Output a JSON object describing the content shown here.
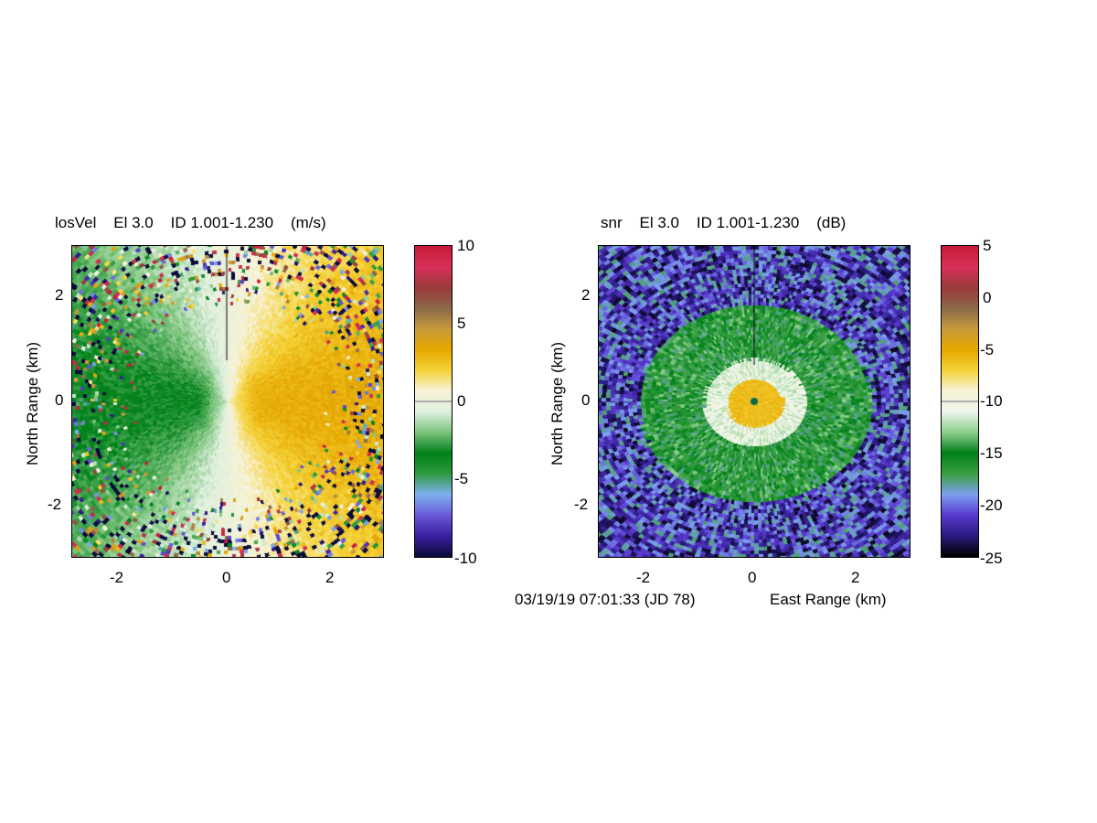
{
  "figure": {
    "timestamp": "03/19/19 07:01:33 (JD 78)",
    "xlabel": "East Range (km)",
    "ylabel": "North Range (km)"
  },
  "chart_data": [
    {
      "type": "heatmap",
      "title": "losVel    El 3.0    ID 1.001-1.230    (m/s)",
      "field": "losVel",
      "xlim": [
        -3,
        3
      ],
      "ylim": [
        -3,
        3
      ],
      "xticks": [
        "-2",
        "0",
        "2"
      ],
      "yticks": [
        "2",
        "0",
        "-2"
      ],
      "xlabel": "",
      "ylabel": "North Range (km)",
      "colorbar": {
        "range": [
          -10,
          10
        ],
        "ticks": [
          "10",
          "5",
          "0",
          "-5",
          "-10"
        ]
      }
    },
    {
      "type": "heatmap",
      "title": "snr    El 3.0    ID 1.001-1.230    (dB)",
      "field": "snr",
      "xlim": [
        -3,
        3
      ],
      "ylim": [
        -3,
        3
      ],
      "xticks": [
        "-2",
        "0",
        "2"
      ],
      "yticks": [
        "2",
        "0",
        "-2"
      ],
      "xlabel": "East Range (km)",
      "ylabel": "North Range (km)",
      "colorbar": {
        "range": [
          -25,
          5
        ],
        "ticks": [
          "5",
          "0",
          "-5",
          "-10",
          "-15",
          "-20",
          "-25"
        ]
      }
    }
  ],
  "colors": {
    "velocity": [
      "#0b0b3a",
      "#3a1fa0",
      "#6a5ad8",
      "#7fb0f0",
      "#2e9a3e",
      "#00801a",
      "#7cc47c",
      "#dff0de",
      "#f7f3d8",
      "#f5d33a",
      "#e6a800",
      "#c89a3a",
      "#8b6a4a",
      "#9a3a3a",
      "#d8305a",
      "#c81a3a"
    ],
    "snr": [
      "#000000",
      "#2a1a80",
      "#5a3ad0",
      "#7d9ff0",
      "#3aa040",
      "#00801a",
      "#8ccf8c",
      "#eef6ec",
      "#f7f3d8",
      "#f5d33a",
      "#e6a800",
      "#c89a3a",
      "#8b6a4a",
      "#9a3a3a",
      "#d8305a",
      "#c81a3a"
    ]
  }
}
